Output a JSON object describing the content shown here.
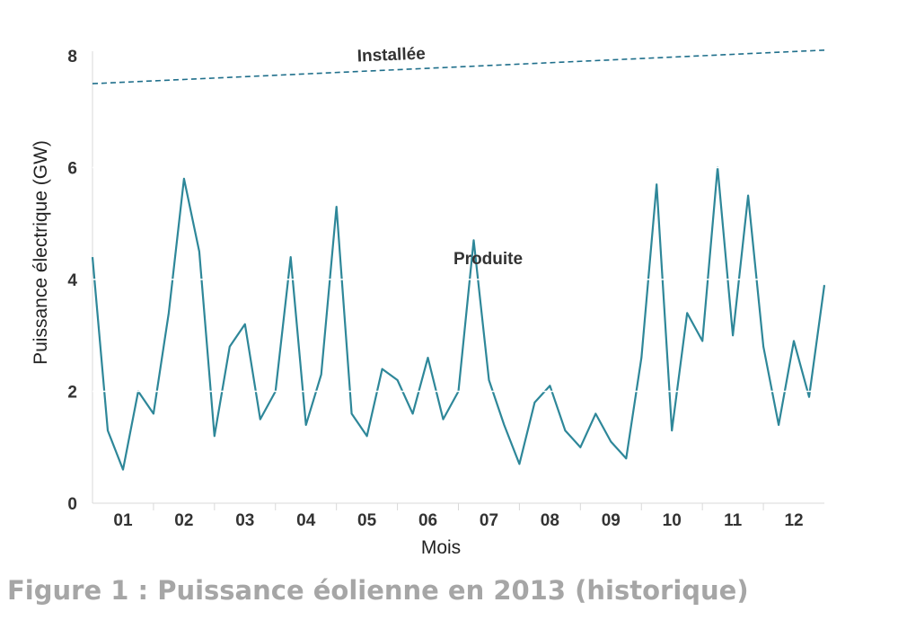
{
  "caption": "Figure 1 : Puissance éolienne en 2013 (historique)",
  "chart_data": {
    "type": "line",
    "title": "",
    "xlabel": "Mois",
    "ylabel": "Puissance électrique (GW)",
    "ylim": [
      0,
      8
    ],
    "xlim": [
      0,
      12
    ],
    "grid": "horizontal white gridlines drawn over the series",
    "x_tick_labels": [
      "01",
      "02",
      "03",
      "04",
      "05",
      "06",
      "07",
      "08",
      "09",
      "10",
      "11",
      "12"
    ],
    "y_tick_labels": [
      "0",
      "2",
      "4",
      "6",
      "8"
    ],
    "y_ticks": [
      0,
      2,
      4,
      6,
      8
    ],
    "series": [
      {
        "name": "Installée",
        "style": "dashed",
        "color": "#1f6f8b",
        "x": [
          0,
          12
        ],
        "y": [
          7.5,
          8.1
        ]
      },
      {
        "name": "Produite",
        "style": "solid",
        "color": "#2e8799",
        "x_unit": "mois",
        "x": [
          0.0,
          0.25,
          0.5,
          0.75,
          1.0,
          1.25,
          1.5,
          1.75,
          2.0,
          2.25,
          2.5,
          2.75,
          3.0,
          3.25,
          3.5,
          3.75,
          4.0,
          4.25,
          4.5,
          4.75,
          5.0,
          5.25,
          5.5,
          5.75,
          6.0,
          6.25,
          6.5,
          6.75,
          7.0,
          7.25,
          7.5,
          7.75,
          8.0,
          8.25,
          8.5,
          8.75,
          9.0,
          9.25,
          9.5,
          9.75,
          10.0,
          10.25,
          10.5,
          10.75,
          11.0,
          11.25,
          11.5,
          11.75,
          12.0
        ],
        "y": [
          4.4,
          1.3,
          0.6,
          2.0,
          1.6,
          3.4,
          5.8,
          4.5,
          1.2,
          2.8,
          3.2,
          1.5,
          2.0,
          4.4,
          1.4,
          2.3,
          5.3,
          1.6,
          1.2,
          2.4,
          2.2,
          1.6,
          2.6,
          1.5,
          2.0,
          4.7,
          2.2,
          1.4,
          0.7,
          1.8,
          2.1,
          1.3,
          1.0,
          1.6,
          1.1,
          0.8,
          2.6,
          5.7,
          1.3,
          3.4,
          2.9,
          6.0,
          3.0,
          5.5,
          2.8,
          1.4,
          2.9,
          1.9,
          3.9
        ],
        "range_note": "daily-resolution series oscillating between about 0.1 and 6.5 GW; values listed are representative samples"
      }
    ],
    "annotations": [
      {
        "text": "Installée",
        "target": "dashed series"
      },
      {
        "text": "Produite",
        "target": "solid series"
      }
    ]
  }
}
